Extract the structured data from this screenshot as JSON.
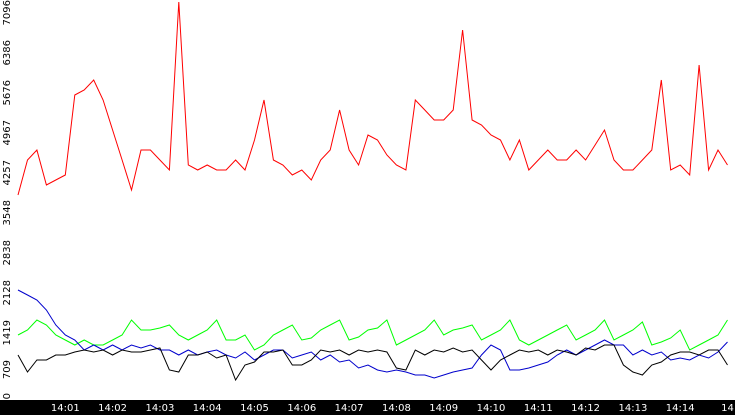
{
  "chart_data": {
    "type": "line",
    "categories": [
      null,
      null,
      null,
      null,
      null,
      "14:01",
      null,
      null,
      null,
      null,
      "14:02",
      null,
      null,
      null,
      null,
      "14:03",
      null,
      null,
      null,
      null,
      "14:04",
      null,
      null,
      null,
      null,
      "14:05",
      null,
      null,
      null,
      null,
      "14:06",
      null,
      null,
      null,
      null,
      "14:07",
      null,
      null,
      null,
      null,
      "14:08",
      null,
      null,
      null,
      null,
      "14:09",
      null,
      null,
      null,
      null,
      "14:10",
      null,
      null,
      null,
      null,
      "14:11",
      null,
      null,
      null,
      null,
      "14:12",
      null,
      null,
      null,
      null,
      "14:13",
      null,
      null,
      null,
      null,
      "14:14",
      null,
      null,
      null,
      null,
      "14"
    ],
    "series": [
      {
        "color": "#ff0000",
        "values": [
          3637,
          4258,
          4435,
          3814,
          3903,
          3992,
          5411,
          5499,
          5677,
          5322,
          4790,
          4258,
          3725,
          4435,
          4435,
          4258,
          4080,
          7061,
          4169,
          4080,
          4169,
          4080,
          4080,
          4258,
          4080,
          4612,
          5322,
          4258,
          4169,
          3992,
          4080,
          3903,
          4258,
          4435,
          5145,
          4435,
          4169,
          4701,
          4612,
          4346,
          4169,
          4080,
          5322,
          5145,
          4967,
          4967,
          5145,
          6564,
          4967,
          4879,
          4701,
          4612,
          4258,
          4612,
          4080,
          4258,
          4435,
          4258,
          4258,
          4435,
          4258,
          4524,
          4790,
          4258,
          4080,
          4080,
          4258,
          4435,
          5677,
          4080,
          4169,
          3992,
          5943,
          4080,
          4435,
          4169
        ]
      },
      {
        "color": "#00ff00",
        "values": [
          1153,
          1242,
          1419,
          1331,
          1153,
          1064,
          976,
          1064,
          976,
          976,
          1064,
          1153,
          1419,
          1242,
          1242,
          1277,
          1331,
          1153,
          1064,
          1153,
          1242,
          1419,
          1064,
          1064,
          1153,
          887,
          976,
          1153,
          1242,
          1331,
          1064,
          1100,
          1242,
          1331,
          1419,
          1064,
          1118,
          1242,
          1277,
          1419,
          976,
          1064,
          1153,
          1242,
          1419,
          1153,
          1242,
          1277,
          1331,
          1064,
          1153,
          1242,
          1419,
          1064,
          976,
          1064,
          1153,
          1242,
          1331,
          1064,
          1153,
          1242,
          1419,
          1064,
          1153,
          1242,
          1384,
          976,
          1029,
          1100,
          1242,
          887,
          976,
          1064,
          1153,
          1419
        ]
      },
      {
        "color": "#0000cc",
        "values": [
          1951,
          1863,
          1774,
          1597,
          1331,
          1153,
          1064,
          887,
          976,
          887,
          976,
          887,
          976,
          922,
          976,
          887,
          887,
          798,
          887,
          798,
          852,
          887,
          798,
          745,
          852,
          710,
          798,
          887,
          887,
          745,
          798,
          852,
          710,
          798,
          674,
          710,
          568,
          621,
          532,
          497,
          532,
          497,
          444,
          444,
          390,
          444,
          497,
          532,
          568,
          798,
          976,
          887,
          532,
          532,
          568,
          621,
          674,
          798,
          887,
          798,
          887,
          976,
          1064,
          976,
          976,
          798,
          887,
          798,
          852,
          710,
          745,
          710,
          798,
          745,
          852,
          1029
        ]
      },
      {
        "color": "#000000",
        "values": [
          798,
          497,
          710,
          710,
          798,
          798,
          852,
          887,
          852,
          887,
          798,
          887,
          852,
          852,
          887,
          922,
          532,
          497,
          798,
          798,
          852,
          745,
          798,
          355,
          621,
          674,
          852,
          852,
          887,
          621,
          621,
          710,
          887,
          852,
          887,
          798,
          887,
          852,
          887,
          852,
          568,
          532,
          887,
          798,
          887,
          852,
          922,
          852,
          887,
          710,
          532,
          710,
          798,
          887,
          852,
          887,
          798,
          887,
          852,
          798,
          922,
          887,
          976,
          976,
          621,
          497,
          444,
          621,
          674,
          798,
          852,
          852,
          798,
          887,
          887,
          621
        ]
      }
    ],
    "ylim": [
      0,
      7096
    ],
    "yticks": [
      0,
      709,
      1419,
      2128,
      2838,
      3548,
      4257,
      4967,
      5676,
      6386,
      7096
    ],
    "grid": false
  }
}
